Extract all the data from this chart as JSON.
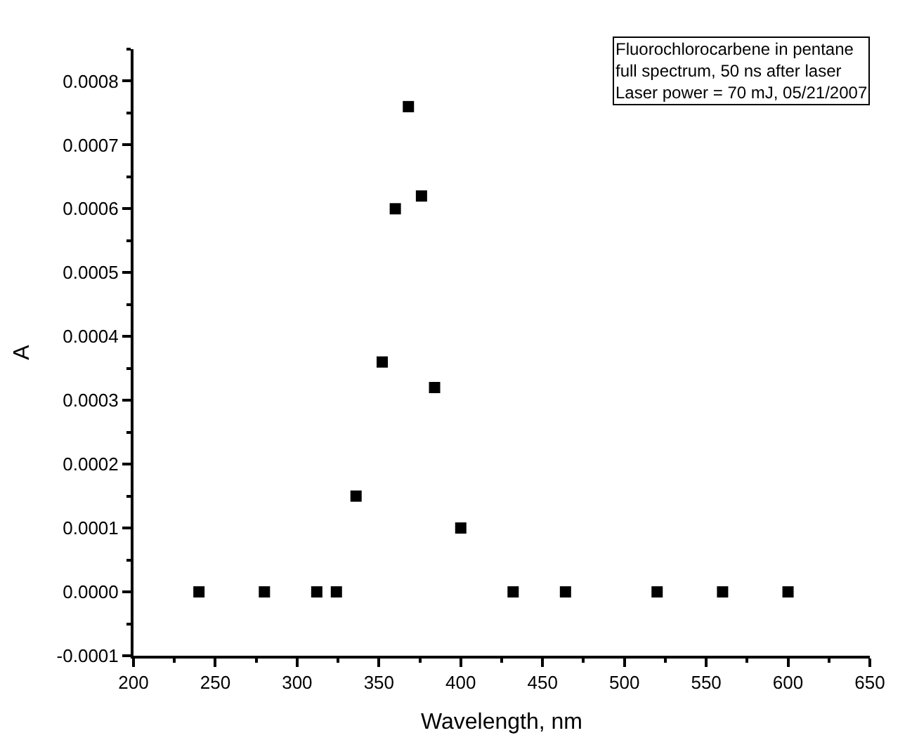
{
  "chart_data": {
    "type": "scatter",
    "xlabel": "Wavelength, nm",
    "ylabel": "A",
    "annotations": [
      "Fluorochlorocarbene in pentane\nfull spectrum, 50 ns after laser\nLaser power = 70 mJ, 05/21/2007"
    ],
    "x": [
      240,
      280,
      312,
      324,
      336,
      352,
      360,
      368,
      376,
      384,
      400,
      432,
      464,
      520,
      560,
      600
    ],
    "series": [
      {
        "color": "#000000",
        "values": [
          0,
          0,
          0,
          0,
          0.00015,
          0.00036,
          0.0006,
          0.00076,
          0.00062,
          0.00032,
          0.0001,
          0,
          0,
          0,
          0,
          0
        ]
      }
    ],
    "marker": "square",
    "xlim": [
      200,
      650
    ],
    "xticks": [
      200,
      250,
      300,
      350,
      400,
      450,
      500,
      550,
      600,
      650
    ],
    "ylim": [
      -0.0001,
      0.00085
    ],
    "yticks": [
      {
        "value": -0.0001,
        "label": "-0.0001"
      },
      {
        "value": 0,
        "label": "0.0000"
      },
      {
        "value": 0.0001,
        "label": "0.0001"
      },
      {
        "value": 0.0002,
        "label": "0.0002"
      },
      {
        "value": 0.0003,
        "label": "0.0003"
      },
      {
        "value": 0.0004,
        "label": "0.0004"
      },
      {
        "value": 0.0005,
        "label": "0.0005"
      },
      {
        "value": 0.0006,
        "label": "0.0006"
      },
      {
        "value": 0.0007,
        "label": "0.0007"
      },
      {
        "value": 0.0008,
        "label": "0.0008"
      }
    ]
  }
}
